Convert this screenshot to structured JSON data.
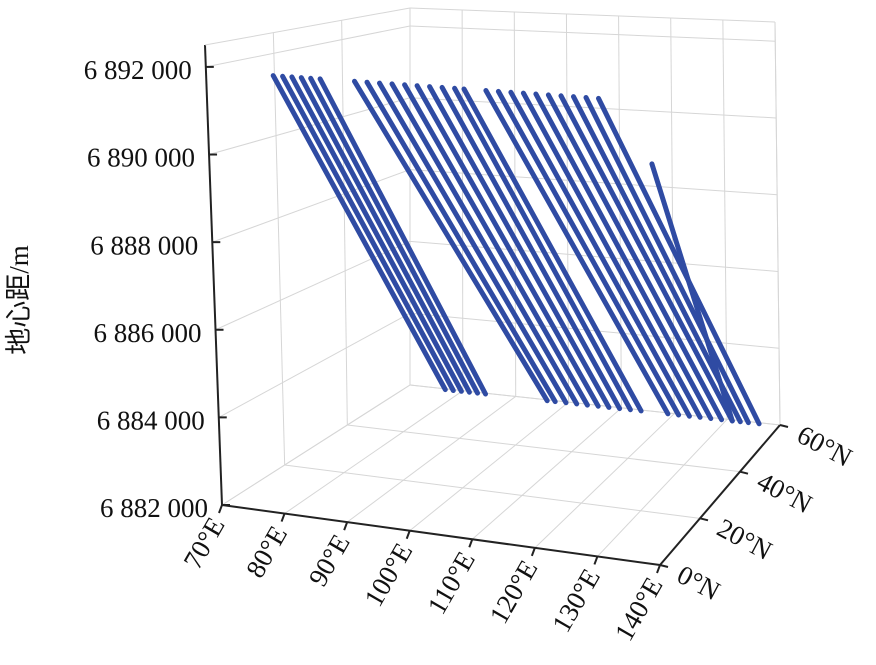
{
  "chart_data": {
    "type": "line3d",
    "zlabel": "地心距/m",
    "color": "#2f4ba3",
    "grid": true,
    "xlim": [
      70,
      140
    ],
    "ylim": [
      0,
      60
    ],
    "zlim": [
      6882000,
      6892500
    ],
    "xticks": [
      {
        "value": 70,
        "label": "70°E"
      },
      {
        "value": 80,
        "label": "80°E"
      },
      {
        "value": 90,
        "label": "90°E"
      },
      {
        "value": 100,
        "label": "100°E"
      },
      {
        "value": 110,
        "label": "110°E"
      },
      {
        "value": 120,
        "label": "120°E"
      },
      {
        "value": 130,
        "label": "130°E"
      },
      {
        "value": 140,
        "label": "140°E"
      }
    ],
    "yticks": [
      {
        "value": 0,
        "label": "0°N"
      },
      {
        "value": 20,
        "label": "20°N"
      },
      {
        "value": 40,
        "label": "40°N"
      },
      {
        "value": 60,
        "label": "60°N"
      }
    ],
    "zticks": [
      {
        "value": 6882000,
        "label": "6 882 000"
      },
      {
        "value": 6884000,
        "label": "6 884 000"
      },
      {
        "value": 6886000,
        "label": "6 886 000"
      },
      {
        "value": 6888000,
        "label": "6 888 000"
      },
      {
        "value": 6890000,
        "label": "6 890 000"
      },
      {
        "value": 6892000,
        "label": "6 892 000"
      }
    ],
    "series": [
      {
        "lon": [
          78,
          79.5
        ],
        "lat": [
          5,
          55
        ],
        "values": [
          6891800,
          6882300
        ]
      },
      {
        "lon": [
          79.5,
          81
        ],
        "lat": [
          5,
          55
        ],
        "values": [
          6891800,
          6882300
        ]
      },
      {
        "lon": [
          81,
          82.5
        ],
        "lat": [
          5,
          55
        ],
        "values": [
          6891800,
          6882300
        ]
      },
      {
        "lon": [
          82.5,
          84
        ],
        "lat": [
          5,
          55
        ],
        "values": [
          6891800,
          6882300
        ]
      },
      {
        "lon": [
          84,
          85.5
        ],
        "lat": [
          5,
          55
        ],
        "values": [
          6891800,
          6882300
        ]
      },
      {
        "lon": [
          85.5,
          87
        ],
        "lat": [
          5,
          55
        ],
        "values": [
          6891800,
          6882300
        ]
      },
      {
        "lon": [
          91,
          98.5
        ],
        "lat": [
          5,
          55
        ],
        "values": [
          6891800,
          6882300
        ]
      },
      {
        "lon": [
          93,
          100
        ],
        "lat": [
          5,
          55
        ],
        "values": [
          6891800,
          6882300
        ]
      },
      {
        "lon": [
          95,
          102
        ],
        "lat": [
          5,
          55
        ],
        "values": [
          6891800,
          6882300
        ]
      },
      {
        "lon": [
          97,
          104
        ],
        "lat": [
          5,
          55
        ],
        "values": [
          6891800,
          6882300
        ]
      },
      {
        "lon": [
          99,
          106
        ],
        "lat": [
          5,
          55
        ],
        "values": [
          6891800,
          6882300
        ]
      },
      {
        "lon": [
          101,
          108
        ],
        "lat": [
          5,
          55
        ],
        "values": [
          6891800,
          6882300
        ]
      },
      {
        "lon": [
          103,
          110
        ],
        "lat": [
          5,
          55
        ],
        "values": [
          6891800,
          6882300
        ]
      },
      {
        "lon": [
          105,
          112
        ],
        "lat": [
          5,
          55
        ],
        "values": [
          6891800,
          6882300
        ]
      },
      {
        "lon": [
          107,
          114
        ],
        "lat": [
          5,
          55
        ],
        "values": [
          6891800,
          6882300
        ]
      },
      {
        "lon": [
          108.5,
          116
        ],
        "lat": [
          5,
          55
        ],
        "values": [
          6891800,
          6882300
        ]
      },
      {
        "lon": [
          112,
          121
        ],
        "lat": [
          5,
          55
        ],
        "values": [
          6891800,
          6882300
        ]
      },
      {
        "lon": [
          114,
          123
        ],
        "lat": [
          5,
          55
        ],
        "values": [
          6891800,
          6882300
        ]
      },
      {
        "lon": [
          116,
          125
        ],
        "lat": [
          5,
          55
        ],
        "values": [
          6891800,
          6882300
        ]
      },
      {
        "lon": [
          118,
          127
        ],
        "lat": [
          5,
          55
        ],
        "values": [
          6891800,
          6882300
        ]
      },
      {
        "lon": [
          120,
          129
        ],
        "lat": [
          5,
          55
        ],
        "values": [
          6891800,
          6882300
        ]
      },
      {
        "lon": [
          122,
          131
        ],
        "lat": [
          5,
          55
        ],
        "values": [
          6891800,
          6882300
        ]
      },
      {
        "lon": [
          124,
          133
        ],
        "lat": [
          5,
          55
        ],
        "values": [
          6891800,
          6882300
        ]
      },
      {
        "lon": [
          126,
          134.5
        ],
        "lat": [
          5,
          55
        ],
        "values": [
          6891800,
          6882300
        ]
      },
      {
        "lon": [
          128,
          136
        ],
        "lat": [
          5,
          55
        ],
        "values": [
          6891800,
          6882300
        ]
      },
      {
        "lon": [
          130,
          138
        ],
        "lat": [
          5,
          55
        ],
        "values": [
          6891800,
          6882300
        ]
      },
      {
        "lon": [
          133,
          133
        ],
        "lat": [
          20,
          55
        ],
        "values": [
          6890000,
          6882300
        ]
      }
    ]
  }
}
